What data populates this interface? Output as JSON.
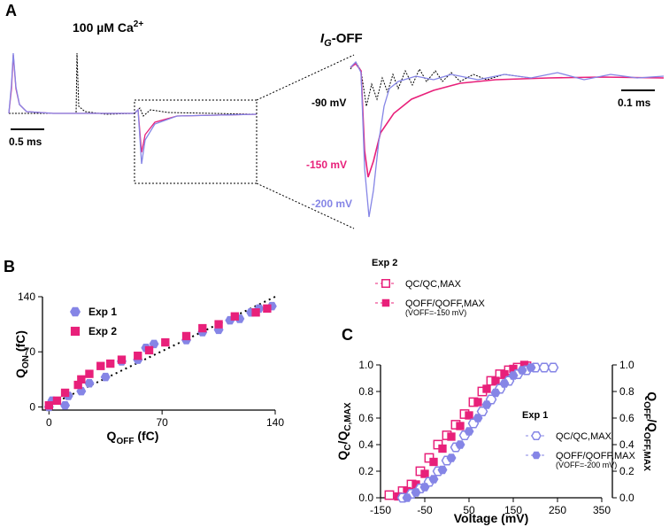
{
  "panel_a": {
    "letter": "A",
    "ca_label": "100 µM Ca",
    "ca_sup": "2+",
    "ig_i": "I",
    "ig_sub": "G",
    "ig_rest": "-OFF",
    "scale_left": "0.5 ms",
    "scale_right": "0.1 ms",
    "trace_labels": [
      "-90 mV",
      "-150 mV",
      "-200 mV"
    ]
  },
  "chart_data": [
    {
      "type": "scatter",
      "letter": "B",
      "xlabel": [
        "Q",
        "OFF",
        " (fC)"
      ],
      "ylabel": [
        "Q",
        "ON",
        " (fC)"
      ],
      "xlim": [
        -4,
        140
      ],
      "ylim": [
        -4,
        140
      ],
      "xticks": [
        0,
        70,
        140
      ],
      "yticks": [
        0,
        70,
        140
      ],
      "series": [
        {
          "name": "Exp 1",
          "color": "#8585e6",
          "marker": "hexagon",
          "filled": true,
          "x": [
            0,
            2,
            10,
            12,
            20,
            25,
            35,
            45,
            55,
            60,
            65,
            85,
            95,
            105,
            112,
            118,
            125,
            130,
            138
          ],
          "values": [
            0,
            8,
            2,
            14,
            20,
            30,
            38,
            58,
            60,
            75,
            80,
            85,
            95,
            98,
            110,
            112,
            120,
            125,
            128
          ]
        },
        {
          "name": "Exp 2",
          "color": "#e8207a",
          "marker": "square",
          "filled": true,
          "x": [
            0,
            5,
            10,
            18,
            20,
            25,
            32,
            38,
            45,
            55,
            62,
            72,
            85,
            95,
            105,
            115,
            128,
            135
          ],
          "values": [
            2,
            8,
            18,
            28,
            35,
            42,
            52,
            55,
            60,
            65,
            72,
            82,
            90,
            100,
            105,
            115,
            120,
            125
          ]
        }
      ]
    },
    {
      "type": "scatter",
      "letter": "C",
      "xlabel": "Voltage (mV)",
      "ylabel": [
        "Q",
        "C",
        "/Q",
        "C,MAX"
      ],
      "y2label": [
        "Q",
        "OFF",
        "/Q",
        "OFF,MAX"
      ],
      "xlim": [
        -150,
        350
      ],
      "ylim": [
        0,
        1
      ],
      "y2lim": [
        0,
        1
      ],
      "xticks": [
        -150,
        -50,
        50,
        150,
        250,
        350
      ],
      "yticks": [
        {
          "value": 0,
          "label": "0.0"
        },
        0.2,
        0.4,
        0.6,
        0.8,
        {
          "value": 1,
          "label": "1.0"
        }
      ],
      "y2ticks": [
        {
          "value": 0,
          "label": "0.0"
        },
        0.2,
        0.4,
        0.6,
        0.8,
        {
          "value": 1,
          "label": "1.0"
        }
      ],
      "groups": [
        "Exp 2",
        "Exp 1"
      ],
      "notes": [
        "(VOFF=-150 mV)",
        "(VOFF=-200 mV)"
      ],
      "series": [
        {
          "name": "QC/QC,MAX",
          "color": "#e8207a",
          "marker": "square",
          "filled": false,
          "x": [
            -130,
            -100,
            -80,
            -60,
            -40,
            -20,
            0,
            20,
            40,
            60,
            80,
            100,
            120,
            140,
            160,
            180
          ],
          "values": [
            0.02,
            0.05,
            0.1,
            0.2,
            0.3,
            0.4,
            0.47,
            0.55,
            0.63,
            0.72,
            0.8,
            0.88,
            0.93,
            0.96,
            0.98,
            0.99
          ]
        },
        {
          "name": "QOFF/QOFF,MAX",
          "color": "#e8207a",
          "marker": "square",
          "filled": true,
          "x": [
            -110,
            -90,
            -70,
            -50,
            -30,
            -10,
            10,
            30,
            50,
            70,
            90,
            110,
            130,
            150,
            175
          ],
          "values": [
            0.01,
            0.05,
            0.1,
            0.18,
            0.27,
            0.37,
            0.46,
            0.54,
            0.62,
            0.72,
            0.82,
            0.88,
            0.93,
            0.97,
            1.0
          ]
        },
        {
          "name": "QC/QC,MAX",
          "color": "#8585e6",
          "marker": "hexagon",
          "filled": false,
          "x": [
            -100,
            -80,
            -60,
            -40,
            -20,
            0,
            20,
            40,
            60,
            80,
            100,
            120,
            140,
            160,
            180,
            200,
            220,
            240
          ],
          "values": [
            0.0,
            0.03,
            0.07,
            0.12,
            0.2,
            0.28,
            0.38,
            0.47,
            0.56,
            0.65,
            0.74,
            0.82,
            0.88,
            0.93,
            0.96,
            0.98,
            0.98,
            0.98
          ]
        },
        {
          "name": "QOFF/QOFF,MAX",
          "color": "#8585e6",
          "marker": "hexagon",
          "filled": true,
          "x": [
            -90,
            -70,
            -50,
            -30,
            -10,
            10,
            30,
            50,
            70,
            90,
            110,
            130,
            150,
            170,
            190
          ],
          "values": [
            0.0,
            0.04,
            0.08,
            0.14,
            0.21,
            0.3,
            0.4,
            0.5,
            0.6,
            0.7,
            0.79,
            0.86,
            0.92,
            0.96,
            0.98
          ]
        }
      ]
    }
  ]
}
